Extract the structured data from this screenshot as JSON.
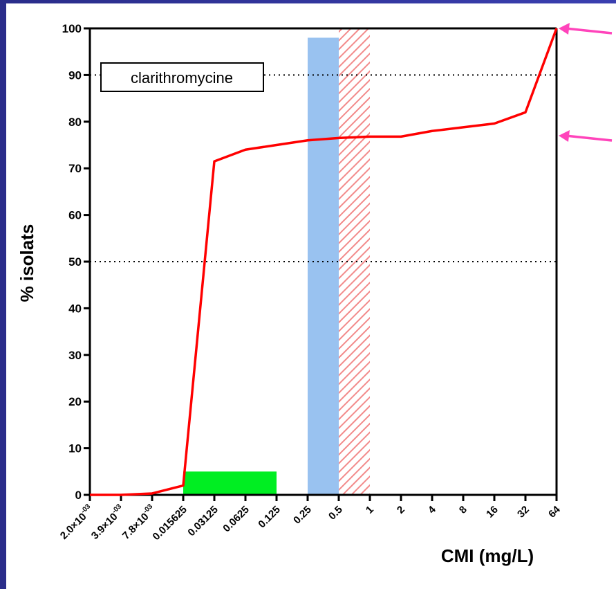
{
  "chart_data": {
    "type": "line",
    "title": "",
    "legend_label": "clarithromycine",
    "xlabel": "CMI (mg/L)",
    "ylabel": "% isolats",
    "ylim": [
      0,
      100
    ],
    "y_ticks": [
      0,
      10,
      20,
      30,
      40,
      50,
      60,
      70,
      80,
      90,
      100
    ],
    "x_tick_labels": [
      "2.0×10-03",
      "3.9×10-03",
      "7.8×10-03",
      "0.015625",
      "0.03125",
      "0.0625",
      "0.125",
      "0.25",
      "0.5",
      "1",
      "2",
      "4",
      "8",
      "16",
      "32",
      "64"
    ],
    "reference_lines": [
      50,
      90
    ],
    "series": [
      {
        "color": "#ff0000",
        "x": [
          "2.0×10-03",
          "3.9×10-03",
          "7.8×10-03",
          "0.015625",
          "0.03125",
          "0.0625",
          "0.125",
          "0.25",
          "0.5",
          "1",
          "2",
          "4",
          "8",
          "16",
          "32",
          "64"
        ],
        "values": [
          0,
          0,
          0.3,
          2,
          71.5,
          74,
          75,
          76,
          76.5,
          76.8,
          76.8,
          78,
          78.8,
          79.6,
          82,
          100
        ]
      }
    ],
    "bands": [
      {
        "color": "#00ee22",
        "from": "0.015625",
        "to": "0.125",
        "height": 5
      },
      {
        "color": "#99c2f0",
        "from": "0.25",
        "to": "0.5",
        "height": 98
      },
      {
        "color": "#f28a8a",
        "pattern": "hatched",
        "from": "0.5",
        "to": "1",
        "height": 100
      }
    ],
    "annotation_arrows": [
      {
        "color": "#ff44bb",
        "points_to_y": 100
      },
      {
        "color": "#ff44bb",
        "points_to_y": 77
      }
    ],
    "grid": false
  }
}
